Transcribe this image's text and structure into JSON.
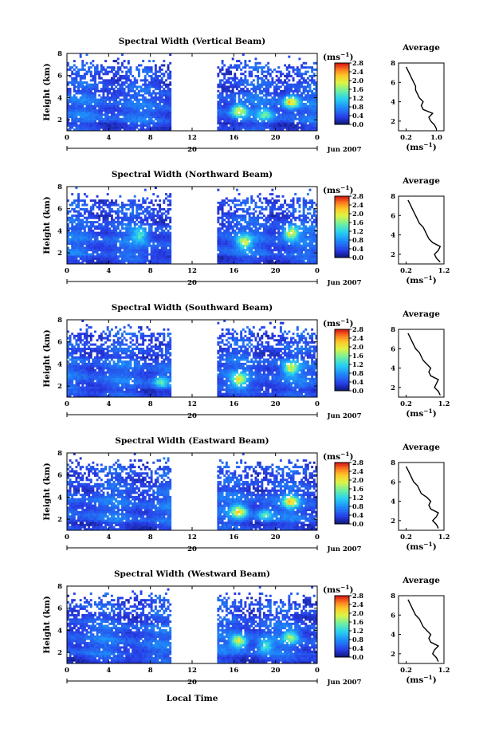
{
  "figure": {
    "xlabel_bottom": "Local Time",
    "date_day": "20",
    "date_month_year": "Jun 2007",
    "colorbar_unit_base": "(ms",
    "colorbar_unit_exp": "−1",
    "avg_title": "Average"
  },
  "chart_data": [
    {
      "type": "heatmap",
      "title": "Spectral Width (Vertical Beam)",
      "ylabel": "Height (km)",
      "xlabel": "",
      "x_ticks": [
        "0",
        "4",
        "8",
        "12",
        "16",
        "20",
        "0"
      ],
      "y_ticks": [
        "2",
        "4",
        "6",
        "8"
      ],
      "xlim": [
        0,
        24
      ],
      "ylim": [
        1,
        8
      ],
      "data_gap_hours": [
        10,
        14.5
      ],
      "hotspots": [
        {
          "t": 16.5,
          "h": 2.8,
          "v": 2.4
        },
        {
          "t": 21.5,
          "h": 3.6,
          "v": 2.6
        },
        {
          "t": 19,
          "h": 2.5,
          "v": 1.6
        }
      ],
      "colorbar": {
        "ticks": [
          "0.0",
          "0.4",
          "0.8",
          "1.2",
          "1.6",
          "2.0",
          "2.4",
          "2.8"
        ],
        "range": [
          0,
          2.8
        ]
      },
      "average_profile": {
        "title": "Average",
        "xlabel": "(ms−1)",
        "x_ticks": [
          "0.2",
          "1.0"
        ],
        "y_ticks": [
          "2",
          "4",
          "6",
          "8"
        ],
        "xlim": [
          0,
          1.2
        ],
        "ylim": [
          1,
          8
        ],
        "height_km": [
          1.2,
          1.6,
          2.0,
          2.4,
          2.8,
          3.2,
          3.6,
          4.0,
          4.4,
          4.8,
          5.2,
          5.6,
          6.0,
          6.4,
          6.8,
          7.2,
          7.6
        ],
        "width": [
          1.0,
          0.95,
          0.85,
          0.8,
          0.9,
          0.65,
          0.6,
          0.65,
          0.55,
          0.5,
          0.45,
          0.45,
          0.4,
          0.35,
          0.3,
          0.25,
          0.2
        ]
      }
    },
    {
      "type": "heatmap",
      "title": "Spectral Width (Northward Beam)",
      "ylabel": "Height (km)",
      "xlabel": "",
      "x_ticks": [
        "0",
        "4",
        "8",
        "12",
        "16",
        "20",
        "0"
      ],
      "y_ticks": [
        "2",
        "4",
        "6",
        "8"
      ],
      "xlim": [
        0,
        24
      ],
      "ylim": [
        1,
        8
      ],
      "data_gap_hours": [
        10,
        14.5
      ],
      "hotspots": [
        {
          "t": 17,
          "h": 3.0,
          "v": 2.2
        },
        {
          "t": 21.5,
          "h": 3.8,
          "v": 2.5
        },
        {
          "t": 7,
          "h": 3.6,
          "v": 1.6
        }
      ],
      "colorbar": {
        "ticks": [
          "0.0",
          "0.4",
          "0.8",
          "1.2",
          "1.6",
          "2.0",
          "2.4",
          "2.8"
        ],
        "range": [
          0,
          2.8
        ]
      },
      "average_profile": {
        "title": "Average",
        "xlabel": "(ms−1)",
        "x_ticks": [
          "0.2",
          "1.2"
        ],
        "y_ticks": [
          "2",
          "4",
          "6",
          "8"
        ],
        "xlim": [
          0,
          1.2
        ],
        "ylim": [
          1,
          8
        ],
        "height_km": [
          1.2,
          1.6,
          2.0,
          2.4,
          2.8,
          3.2,
          3.6,
          4.0,
          4.4,
          4.8,
          5.2,
          5.6,
          6.0,
          6.4,
          6.8,
          7.2,
          7.6
        ],
        "width": [
          1.1,
          1.0,
          0.95,
          1.05,
          1.1,
          0.9,
          0.8,
          0.75,
          0.7,
          0.65,
          0.55,
          0.5,
          0.45,
          0.4,
          0.35,
          0.3,
          0.25
        ]
      }
    },
    {
      "type": "heatmap",
      "title": "Spectral Width (Southward Beam)",
      "ylabel": "Height (km)",
      "xlabel": "",
      "x_ticks": [
        "0",
        "4",
        "8",
        "12",
        "16",
        "20",
        "0"
      ],
      "y_ticks": [
        "2",
        "4",
        "6",
        "8"
      ],
      "xlim": [
        0,
        24
      ],
      "ylim": [
        1,
        8
      ],
      "data_gap_hours": [
        10,
        14.5
      ],
      "hotspots": [
        {
          "t": 16.5,
          "h": 2.6,
          "v": 2.4
        },
        {
          "t": 21.5,
          "h": 3.6,
          "v": 2.2
        },
        {
          "t": 9,
          "h": 2.4,
          "v": 1.6
        }
      ],
      "colorbar": {
        "ticks": [
          "0.0",
          "0.4",
          "0.8",
          "1.2",
          "1.6",
          "2.0",
          "2.4",
          "2.8"
        ],
        "range": [
          0,
          2.8
        ]
      },
      "average_profile": {
        "title": "Average",
        "xlabel": "(ms−1)",
        "x_ticks": [
          "0.2",
          "1.2"
        ],
        "y_ticks": [
          "2",
          "4",
          "6",
          "8"
        ],
        "xlim": [
          0,
          1.2
        ],
        "ylim": [
          1,
          8
        ],
        "height_km": [
          1.2,
          1.6,
          2.0,
          2.4,
          2.8,
          3.2,
          3.6,
          4.0,
          4.4,
          4.8,
          5.2,
          5.6,
          6.0,
          6.4,
          6.8,
          7.2,
          7.6
        ],
        "width": [
          1.1,
          1.05,
          0.95,
          1.0,
          1.05,
          0.85,
          0.8,
          0.85,
          0.75,
          0.65,
          0.6,
          0.55,
          0.45,
          0.4,
          0.35,
          0.3,
          0.25
        ]
      }
    },
    {
      "type": "heatmap",
      "title": "Spectral Width (Eastward Beam)",
      "ylabel": "Height (km)",
      "xlabel": "",
      "x_ticks": [
        "0",
        "4",
        "8",
        "12",
        "16",
        "20",
        "0"
      ],
      "y_ticks": [
        "2",
        "4",
        "6",
        "8"
      ],
      "xlim": [
        0,
        24
      ],
      "ylim": [
        1,
        8
      ],
      "data_gap_hours": [
        10,
        14.5
      ],
      "hotspots": [
        {
          "t": 16.5,
          "h": 2.7,
          "v": 2.5
        },
        {
          "t": 21.5,
          "h": 3.6,
          "v": 2.4
        },
        {
          "t": 19,
          "h": 2.4,
          "v": 1.6
        }
      ],
      "colorbar": {
        "ticks": [
          "0.0",
          "0.4",
          "0.8",
          "1.2",
          "1.6",
          "2.0",
          "2.4",
          "2.8"
        ],
        "range": [
          0,
          2.8
        ]
      },
      "average_profile": {
        "title": "Average",
        "xlabel": "(ms−1)",
        "x_ticks": [
          "0.2",
          "1.2"
        ],
        "y_ticks": [
          "2",
          "4",
          "6",
          "8"
        ],
        "xlim": [
          0,
          1.2
        ],
        "ylim": [
          1,
          8
        ],
        "height_km": [
          1.2,
          1.6,
          2.0,
          2.4,
          2.8,
          3.2,
          3.6,
          4.0,
          4.4,
          4.8,
          5.2,
          5.6,
          6.0,
          6.4,
          6.8,
          7.2,
          7.6
        ],
        "width": [
          1.05,
          1.0,
          0.9,
          1.0,
          1.05,
          0.85,
          0.8,
          0.85,
          0.75,
          0.6,
          0.55,
          0.5,
          0.4,
          0.35,
          0.3,
          0.25,
          0.2
        ]
      }
    },
    {
      "type": "heatmap",
      "title": "Spectral Width (Westward Beam)",
      "ylabel": "Height (km)",
      "xlabel": "Local Time",
      "x_ticks": [
        "0",
        "4",
        "8",
        "12",
        "16",
        "20",
        "0"
      ],
      "y_ticks": [
        "2",
        "4",
        "6",
        "8"
      ],
      "xlim": [
        0,
        24
      ],
      "ylim": [
        1,
        8
      ],
      "data_gap_hours": [
        10,
        14.5
      ],
      "hotspots": [
        {
          "t": 16.5,
          "h": 3.0,
          "v": 2.4
        },
        {
          "t": 21.5,
          "h": 3.4,
          "v": 2.0
        },
        {
          "t": 19,
          "h": 2.6,
          "v": 1.6
        }
      ],
      "colorbar": {
        "ticks": [
          "0.0",
          "0.4",
          "0.8",
          "1.2",
          "1.6",
          "2.0",
          "2.4",
          "2.8"
        ],
        "range": [
          0,
          2.8
        ]
      },
      "average_profile": {
        "title": "Average",
        "xlabel": "(ms−1)",
        "x_ticks": [
          "0.2",
          "1.2"
        ],
        "y_ticks": [
          "2",
          "4",
          "6",
          "8"
        ],
        "xlim": [
          0,
          1.2
        ],
        "ylim": [
          1,
          8
        ],
        "height_km": [
          1.2,
          1.6,
          2.0,
          2.4,
          2.8,
          3.2,
          3.6,
          4.0,
          4.4,
          4.8,
          5.2,
          5.6,
          6.0,
          6.4,
          6.8,
          7.2,
          7.6
        ],
        "width": [
          1.05,
          1.0,
          0.9,
          0.95,
          1.05,
          0.85,
          0.8,
          0.85,
          0.75,
          0.65,
          0.6,
          0.55,
          0.45,
          0.4,
          0.35,
          0.3,
          0.25
        ]
      }
    }
  ]
}
